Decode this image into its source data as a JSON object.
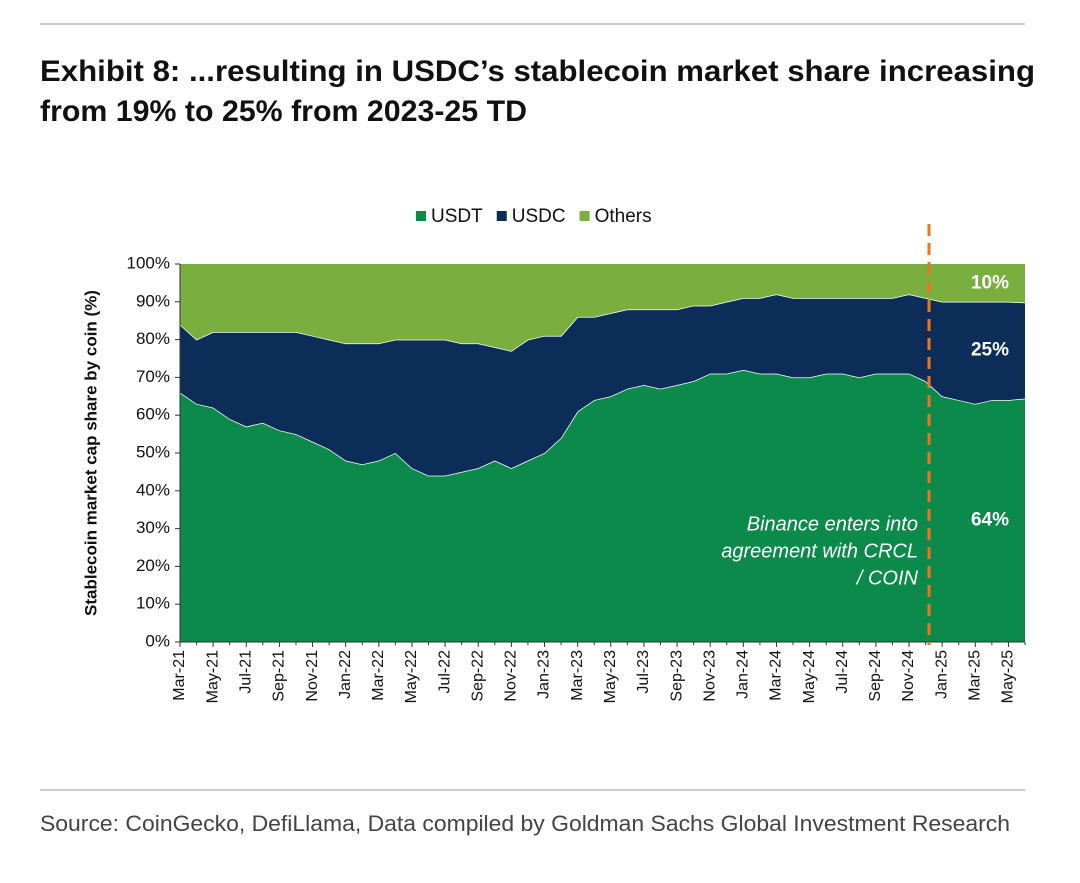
{
  "chart_data": {
    "type": "stacked_area",
    "title": [
      "Exhibit 8: ...resulting in USDC’s stablecoin market share increasing",
      "from 19% to 25% from 2023-25 TD"
    ],
    "ylabel": "Stablecoin market cap share by coin (%)",
    "source": "Source: CoinGecko, DefiLlama, Data compiled by Goldman Sachs Global Investment Research",
    "annotation": [
      "Binance enters into",
      "agreement with CRCL",
      "/ COIN"
    ],
    "categories": [
      "Mar-21",
      null,
      "May-21",
      null,
      "Jul-21",
      null,
      "Sep-21",
      null,
      "Nov-21",
      null,
      "Jan-22",
      null,
      "Mar-22",
      null,
      "May-22",
      null,
      "Jul-22",
      null,
      "Sep-22",
      null,
      "Nov-22",
      null,
      "Jan-23",
      null,
      "Mar-23",
      null,
      "May-23",
      null,
      "Jul-23",
      null,
      "Sep-23",
      null,
      "Nov-23",
      null,
      "Jan-24",
      null,
      "Mar-24",
      null,
      "May-24",
      null,
      "Jul-24",
      null,
      "Sep-24",
      null,
      "Nov-24",
      null,
      "Jan-25",
      null,
      "Mar-25",
      null,
      "May-25",
      null
    ],
    "series": [
      {
        "name": "USDT",
        "color": "#0b8a4b",
        "end_label": "64%",
        "values": [
          66,
          63,
          62,
          59,
          57,
          58,
          56,
          55,
          53,
          51,
          48,
          47,
          48,
          50,
          46,
          44,
          44,
          45,
          46,
          48,
          46,
          48,
          50,
          54,
          61,
          64,
          65,
          67,
          68,
          67,
          68,
          69,
          71,
          71,
          72,
          71,
          71,
          70,
          70,
          71,
          71,
          70,
          71,
          71,
          71,
          69,
          65,
          64,
          63,
          64,
          64,
          64.4
        ]
      },
      {
        "name": "USDC",
        "color": "#0c2d58",
        "end_label": "25%",
        "values": [
          18,
          17,
          20,
          23,
          25,
          24,
          26,
          27,
          28,
          29,
          31,
          32,
          31,
          30,
          34,
          36,
          36,
          34,
          33,
          30,
          31,
          32,
          31,
          27,
          25,
          22,
          22,
          21,
          20,
          21,
          20,
          20,
          18,
          19,
          19,
          20,
          21,
          21,
          21,
          20,
          20,
          21,
          20,
          20,
          21,
          22,
          25,
          26,
          27,
          26,
          26,
          25.4
        ]
      },
      {
        "name": "Others",
        "color": "#7aae3e",
        "end_label": "10%",
        "values": [
          16,
          20,
          18,
          18,
          18,
          18,
          18,
          18,
          19,
          20,
          21,
          21,
          21,
          20,
          20,
          20,
          20,
          21,
          21,
          22,
          23,
          20,
          19,
          19,
          14,
          14,
          13,
          12,
          12,
          12,
          12,
          11,
          11,
          10,
          9,
          9,
          8,
          9,
          9,
          9,
          9,
          9,
          9,
          9,
          8,
          9,
          10,
          10,
          10,
          10,
          10,
          10.2
        ]
      }
    ],
    "ylim": [
      0,
      100
    ],
    "yticks": [
      {
        "value": 0,
        "label": "0%"
      },
      {
        "value": 10,
        "label": "10%"
      },
      {
        "value": 20,
        "label": "20%"
      },
      {
        "value": 30,
        "label": "30%"
      },
      {
        "value": 40,
        "label": "40%"
      },
      {
        "value": 50,
        "label": "50%"
      },
      {
        "value": 60,
        "label": "60%"
      },
      {
        "value": 70,
        "label": "70%"
      },
      {
        "value": 80,
        "label": "80%"
      },
      {
        "value": 90,
        "label": "90%"
      },
      {
        "value": 100,
        "label": "100%"
      }
    ],
    "grid": false,
    "legend": "top"
  }
}
